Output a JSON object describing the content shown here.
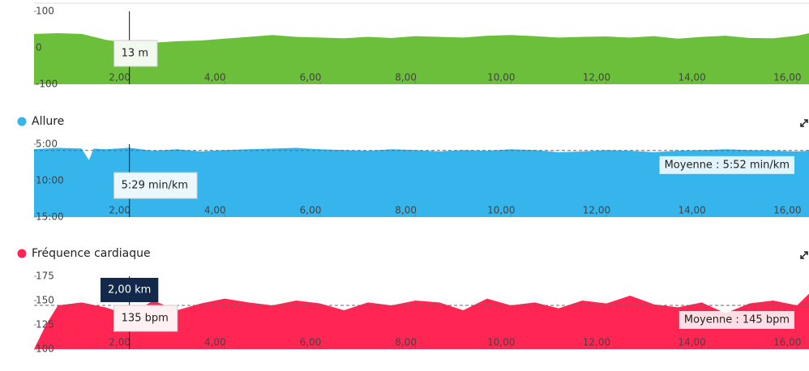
{
  "chart_data": [
    {
      "type": "area",
      "x": [
        0,
        0.5,
        1,
        1.5,
        2,
        2.5,
        3,
        3.5,
        4,
        4.5,
        5,
        5.5,
        6,
        6.5,
        7,
        7.5,
        8,
        8.5,
        9,
        9.5,
        10,
        10.5,
        11,
        11.5,
        12,
        12.5,
        13,
        13.5,
        14,
        14.5,
        15,
        15.5,
        16,
        16.25
      ],
      "values": [
        38,
        40,
        38,
        22,
        13,
        14,
        18,
        20,
        25,
        30,
        35,
        30,
        28,
        26,
        30,
        27,
        32,
        30,
        28,
        33,
        35,
        32,
        28,
        30,
        31,
        28,
        32,
        25,
        30,
        33,
        27,
        26,
        33,
        40
      ],
      "color": "#6cbf3a",
      "xlim": [
        0,
        16.25
      ],
      "xticks": [
        {
          "value": 2,
          "label": "2,00"
        },
        {
          "value": 4,
          "label": "4,00"
        },
        {
          "value": 6,
          "label": "6,00"
        },
        {
          "value": 8,
          "label": "8,00"
        },
        {
          "value": 10,
          "label": "10,00"
        },
        {
          "value": 12,
          "label": "12,00"
        },
        {
          "value": 14,
          "label": "14,00"
        },
        {
          "value": 16,
          "label": "16,00"
        }
      ],
      "ylim": [
        -100,
        100
      ],
      "yticks": [
        -100,
        0,
        100
      ],
      "tooltip": {
        "x": 2,
        "value": 13,
        "label": "13 m"
      }
    },
    {
      "type": "area",
      "title": "Allure",
      "x": [
        0,
        0.5,
        1,
        1.15,
        1.25,
        1.5,
        2,
        2.5,
        3,
        3.5,
        4,
        4.5,
        5,
        5.5,
        6,
        6.5,
        7,
        7.5,
        8,
        8.5,
        9,
        9.5,
        10,
        10.5,
        11,
        11.5,
        12,
        12.5,
        13,
        13.5,
        14,
        14.5,
        15,
        15.5,
        16,
        16.25
      ],
      "values": [
        5.7,
        5.5,
        5.6,
        7.2,
        5.6,
        5.7,
        5.4833,
        5.9,
        5.7,
        6.0,
        5.8,
        5.7,
        5.6,
        5.5,
        5.7,
        5.8,
        5.9,
        5.7,
        5.8,
        6.0,
        5.8,
        5.9,
        5.7,
        5.8,
        6.1,
        6.0,
        5.8,
        5.9,
        6.1,
        5.9,
        5.8,
        5.7,
        5.8,
        5.9,
        6.0,
        5.9
      ],
      "color": "#35b5ec",
      "xlim": [
        0,
        16.25
      ],
      "xticks": [
        {
          "value": 2,
          "label": "2,00"
        },
        {
          "value": 4,
          "label": "4,00"
        },
        {
          "value": 6,
          "label": "6,00"
        },
        {
          "value": 8,
          "label": "8,00"
        },
        {
          "value": 10,
          "label": "10,00"
        },
        {
          "value": 12,
          "label": "12,00"
        },
        {
          "value": 14,
          "label": "14,00"
        },
        {
          "value": 16,
          "label": "16,00"
        }
      ],
      "ylim": [
        5,
        15
      ],
      "y_reversed": true,
      "yticks": [
        {
          "value": 5,
          "label": "5:00"
        },
        {
          "value": 10,
          "label": "10:00"
        },
        {
          "value": 15,
          "label": "15:00"
        }
      ],
      "mean": {
        "value": 5.8667,
        "label": "Moyenne : 5:52 min/km"
      },
      "tooltip": {
        "x": 2,
        "value": 5.4833,
        "label": "5:29 min/km"
      }
    },
    {
      "type": "area",
      "title": "Fréquence cardiaque",
      "x": [
        0,
        0.25,
        0.5,
        1,
        1.5,
        2,
        2.5,
        3,
        3.5,
        4,
        4.5,
        5,
        5.5,
        6,
        6.5,
        7,
        7.5,
        8,
        8.5,
        9,
        9.5,
        10,
        10.5,
        11,
        11.5,
        12,
        12.5,
        13,
        13.5,
        14,
        14.5,
        15,
        15.5,
        16,
        16.25
      ],
      "values": [
        100,
        125,
        145,
        148,
        143,
        135,
        150,
        140,
        147,
        152,
        148,
        145,
        150,
        147,
        140,
        148,
        145,
        150,
        148,
        140,
        152,
        145,
        148,
        142,
        150,
        147,
        155,
        146,
        143,
        148,
        137,
        147,
        150,
        145,
        157
      ],
      "color": "#ff2654",
      "xlim": [
        0,
        16.25
      ],
      "xticks": [
        {
          "value": 2,
          "label": "2,00"
        },
        {
          "value": 4,
          "label": "4,00"
        },
        {
          "value": 6,
          "label": "6,00"
        },
        {
          "value": 8,
          "label": "8,00"
        },
        {
          "value": 10,
          "label": "10,00"
        },
        {
          "value": 12,
          "label": "12,00"
        },
        {
          "value": 14,
          "label": "14,00"
        },
        {
          "value": 16,
          "label": "16,00"
        }
      ],
      "ylim": [
        100,
        175
      ],
      "yticks": [
        100,
        125,
        150,
        175
      ],
      "mean": {
        "value": 145,
        "label": "Moyenne : 145 bpm"
      },
      "tooltip": {
        "x": 2,
        "value": 135,
        "label": "135 bpm"
      },
      "crosshair_label": {
        "value": 2,
        "label": "2,00 km"
      }
    }
  ]
}
